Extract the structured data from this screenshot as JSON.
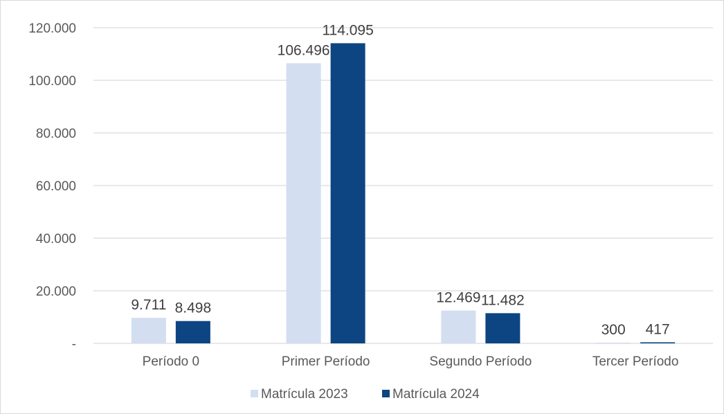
{
  "chart_data": {
    "type": "bar",
    "categories": [
      "Período 0",
      "Primer Período",
      "Segundo Período",
      "Tercer Período"
    ],
    "series": [
      {
        "name": "Matrícula 2023",
        "values": [
          9711,
          106496,
          12469,
          300
        ],
        "labels": [
          "9.711",
          "106.496",
          "12.469",
          "300"
        ],
        "color": "#d3def1"
      },
      {
        "name": "Matrícula 2024",
        "values": [
          8498,
          114095,
          11482,
          417
        ],
        "labels": [
          "8.498",
          "114.095",
          "11.482",
          "417"
        ],
        "color": "#0d4582"
      }
    ],
    "ylim": [
      0,
      120000
    ],
    "yticks": [
      0,
      20000,
      40000,
      60000,
      80000,
      100000,
      120000
    ],
    "ytick_labels": [
      "-",
      "20.000",
      "40.000",
      "60.000",
      "80.000",
      "100.000",
      "120.000"
    ],
    "grid": true,
    "legend": "bottom"
  }
}
